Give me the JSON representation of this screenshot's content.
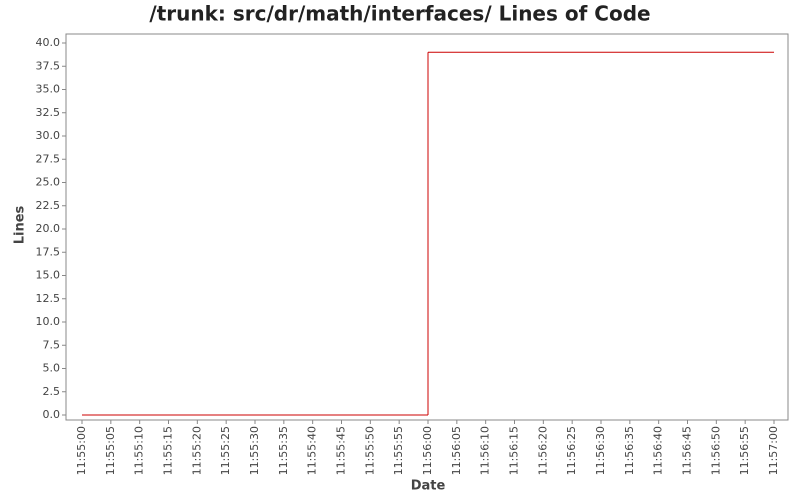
{
  "chart_data": {
    "type": "step",
    "title": "/trunk: src/dr/math/interfaces/ Lines of Code",
    "x_label": "Date",
    "y_label": "Lines",
    "x": [
      "11:55:00",
      "11:56:00",
      "11:57:00"
    ],
    "values": [
      0,
      39,
      39
    ],
    "color": "#cc0000",
    "xlim": [
      "11:55:00",
      "11:57:00"
    ],
    "xticks": [
      "11:55:00",
      "11:55:05",
      "11:55:10",
      "11:55:15",
      "11:55:20",
      "11:55:25",
      "11:55:30",
      "11:55:35",
      "11:55:40",
      "11:55:45",
      "11:55:50",
      "11:55:55",
      "11:56:00",
      "11:56:05",
      "11:56:10",
      "11:56:15",
      "11:56:20",
      "11:56:25",
      "11:56:30",
      "11:56:35",
      "11:56:40",
      "11:56:45",
      "11:56:50",
      "11:56:55",
      "11:57:00"
    ],
    "ylim": [
      0,
      40
    ],
    "yticks": [
      {
        "value": 0,
        "label": "0.0"
      },
      {
        "value": 2.5,
        "label": "2.5"
      },
      {
        "value": 5,
        "label": "5.0"
      },
      {
        "value": 7.5,
        "label": "7.5"
      },
      {
        "value": 10,
        "label": "10.0"
      },
      {
        "value": 12.5,
        "label": "12.5"
      },
      {
        "value": 15,
        "label": "15.0"
      },
      {
        "value": 17.5,
        "label": "17.5"
      },
      {
        "value": 20,
        "label": "20.0"
      },
      {
        "value": 22.5,
        "label": "22.5"
      },
      {
        "value": 25,
        "label": "25.0"
      },
      {
        "value": 27.5,
        "label": "27.5"
      },
      {
        "value": 30,
        "label": "30.0"
      },
      {
        "value": 32.5,
        "label": "32.5"
      },
      {
        "value": 35,
        "label": "35.0"
      },
      {
        "value": 37.5,
        "label": "37.5"
      },
      {
        "value": 40,
        "label": "40.0"
      }
    ]
  }
}
